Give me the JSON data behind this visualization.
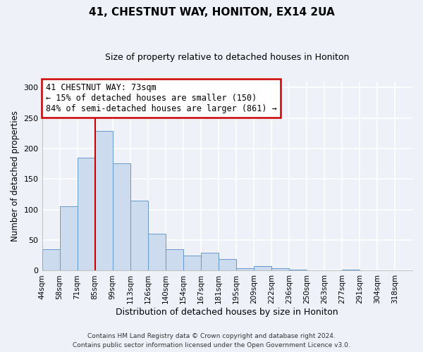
{
  "title": "41, CHESTNUT WAY, HONITON, EX14 2UA",
  "subtitle": "Size of property relative to detached houses in Honiton",
  "xlabel": "Distribution of detached houses by size in Honiton",
  "ylabel": "Number of detached properties",
  "footer_line1": "Contains HM Land Registry data © Crown copyright and database right 2024.",
  "footer_line2": "Contains public sector information licensed under the Open Government Licence v3.0.",
  "bar_labels": [
    "44sqm",
    "58sqm",
    "71sqm",
    "85sqm",
    "99sqm",
    "113sqm",
    "126sqm",
    "140sqm",
    "154sqm",
    "167sqm",
    "181sqm",
    "195sqm",
    "209sqm",
    "222sqm",
    "236sqm",
    "250sqm",
    "263sqm",
    "277sqm",
    "291sqm",
    "304sqm",
    "318sqm"
  ],
  "bar_heights": [
    35,
    106,
    185,
    229,
    176,
    115,
    60,
    35,
    25,
    29,
    19,
    4,
    8,
    4,
    2,
    1,
    0,
    2,
    0,
    1,
    0
  ],
  "bar_color": "#ccdcee",
  "bar_edge_color": "#6699cc",
  "ylim": [
    0,
    310
  ],
  "yticks": [
    0,
    50,
    100,
    150,
    200,
    250,
    300
  ],
  "marker_label": "41 CHESTNUT WAY: 73sqm",
  "annotation_line1": "← 15% of detached houses are smaller (150)",
  "annotation_line2": "84% of semi-detached houses are larger (861) →",
  "annotation_box_color": "#ffffff",
  "annotation_box_edge_color": "#cc0000",
  "marker_line_color": "#cc0000",
  "background_color": "#eef2f8",
  "grid_color": "#ffffff",
  "marker_bar_index": 2
}
